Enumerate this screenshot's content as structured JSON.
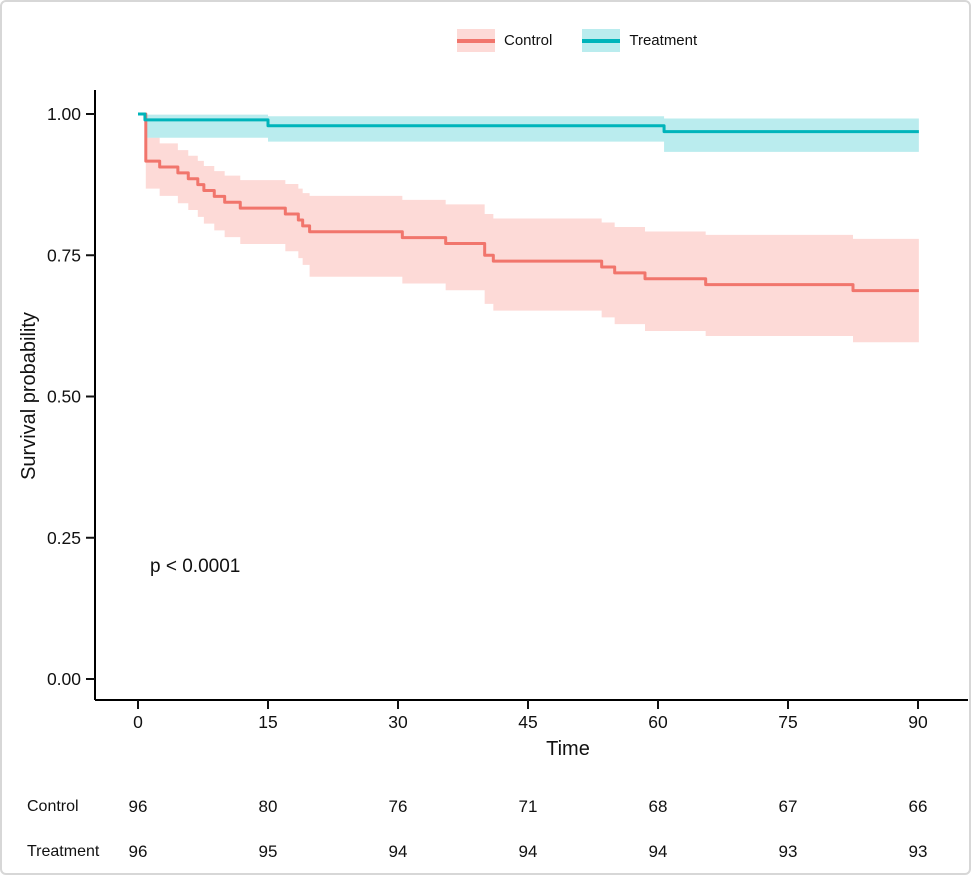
{
  "legend": {
    "items": [
      {
        "label": "Control",
        "line_color": "#F1756C",
        "fill_color": "rgba(247,118,109,0.27)"
      },
      {
        "label": "Treatment",
        "line_color": "#00B4BA",
        "fill_color": "rgba(0,186,192,0.27)"
      }
    ]
  },
  "chart_data": {
    "type": "line",
    "subtype": "kaplan-meier-step",
    "title": "",
    "xlabel": "Time",
    "ylabel": "Survival probability",
    "xlim": [
      0,
      90
    ],
    "ylim": [
      0,
      1
    ],
    "grid": false,
    "legend_position": "top",
    "annotation": {
      "text": "p < 0.0001"
    },
    "xticks": [
      {
        "v": 0,
        "label": "0"
      },
      {
        "v": 15,
        "label": "15"
      },
      {
        "v": 30,
        "label": "30"
      },
      {
        "v": 45,
        "label": "45"
      },
      {
        "v": 60,
        "label": "60"
      },
      {
        "v": 75,
        "label": "75"
      },
      {
        "v": 90,
        "label": "90"
      }
    ],
    "yticks": [
      {
        "v": 1.0,
        "label": "1.00"
      },
      {
        "v": 0.75,
        "label": "0.75"
      },
      {
        "v": 0.5,
        "label": "0.50"
      },
      {
        "v": 0.25,
        "label": "0.25"
      },
      {
        "v": 0.0,
        "label": "0.00"
      }
    ],
    "series": [
      {
        "name": "Control",
        "line_color": "#F1756C",
        "band_color": "rgba(247,118,109,0.27)",
        "end_t": 90.1,
        "steps": [
          {
            "t": 0,
            "s": 1.0
          },
          {
            "t": 0.9,
            "s": 0.9167
          },
          {
            "t": 2.5,
            "s": 0.9063
          },
          {
            "t": 4.6,
            "s": 0.8958
          },
          {
            "t": 5.8,
            "s": 0.8854
          },
          {
            "t": 6.9,
            "s": 0.875
          },
          {
            "t": 7.6,
            "s": 0.8646
          },
          {
            "t": 8.8,
            "s": 0.8542
          },
          {
            "t": 10,
            "s": 0.8438
          },
          {
            "t": 11.8,
            "s": 0.8333
          },
          {
            "t": 17,
            "s": 0.8229
          },
          {
            "t": 18.5,
            "s": 0.8125
          },
          {
            "t": 19,
            "s": 0.8021
          },
          {
            "t": 19.8,
            "s": 0.7917
          },
          {
            "t": 30.5,
            "s": 0.7813
          },
          {
            "t": 35.5,
            "s": 0.7708
          },
          {
            "t": 40,
            "s": 0.75
          },
          {
            "t": 41,
            "s": 0.7396
          },
          {
            "t": 53.5,
            "s": 0.7292
          },
          {
            "t": 55,
            "s": 0.7188
          },
          {
            "t": 58.5,
            "s": 0.7083
          },
          {
            "t": 65.5,
            "s": 0.6979
          },
          {
            "t": 82.5,
            "s": 0.6875
          }
        ],
        "band": [
          {
            "t": 0.9,
            "lo": 0.868,
            "hi": 0.958
          },
          {
            "t": 2.5,
            "lo": 0.855,
            "hi": 0.948
          },
          {
            "t": 4.6,
            "lo": 0.842,
            "hi": 0.936
          },
          {
            "t": 5.8,
            "lo": 0.83,
            "hi": 0.926
          },
          {
            "t": 6.9,
            "lo": 0.818,
            "hi": 0.917
          },
          {
            "t": 7.6,
            "lo": 0.806,
            "hi": 0.908
          },
          {
            "t": 8.8,
            "lo": 0.794,
            "hi": 0.899
          },
          {
            "t": 10,
            "lo": 0.782,
            "hi": 0.891
          },
          {
            "t": 11.8,
            "lo": 0.77,
            "hi": 0.883
          },
          {
            "t": 17,
            "lo": 0.757,
            "hi": 0.876
          },
          {
            "t": 18.5,
            "lo": 0.745,
            "hi": 0.868
          },
          {
            "t": 19,
            "lo": 0.733,
            "hi": 0.86
          },
          {
            "t": 19.8,
            "lo": 0.712,
            "hi": 0.855
          },
          {
            "t": 30.5,
            "lo": 0.7,
            "hi": 0.848
          },
          {
            "t": 35.5,
            "lo": 0.688,
            "hi": 0.84
          },
          {
            "t": 40,
            "lo": 0.664,
            "hi": 0.823
          },
          {
            "t": 41,
            "lo": 0.652,
            "hi": 0.815
          },
          {
            "t": 53.5,
            "lo": 0.64,
            "hi": 0.808
          },
          {
            "t": 55,
            "lo": 0.628,
            "hi": 0.8
          },
          {
            "t": 58.5,
            "lo": 0.616,
            "hi": 0.792
          },
          {
            "t": 65.5,
            "lo": 0.607,
            "hi": 0.786
          },
          {
            "t": 82.5,
            "lo": 0.596,
            "hi": 0.779
          }
        ]
      },
      {
        "name": "Treatment",
        "line_color": "#00B4BA",
        "band_color": "rgba(0,186,192,0.27)",
        "end_t": 90.1,
        "steps": [
          {
            "t": 0,
            "s": 1.0
          },
          {
            "t": 0.8,
            "s": 0.9896
          },
          {
            "t": 15,
            "s": 0.9792
          },
          {
            "t": 60.7,
            "s": 0.9688
          }
        ],
        "band": [
          {
            "t": 0.8,
            "lo": 0.958,
            "hi": 0.999
          },
          {
            "t": 15,
            "lo": 0.951,
            "hi": 0.996
          },
          {
            "t": 60.7,
            "lo": 0.933,
            "hi": 0.992
          }
        ]
      }
    ]
  },
  "risk_table": {
    "times": [
      0,
      15,
      30,
      45,
      60,
      75,
      90
    ],
    "rows": [
      {
        "label": "Control",
        "counts": [
          "96",
          "80",
          "76",
          "71",
          "68",
          "67",
          "66"
        ]
      },
      {
        "label": "Treatment",
        "counts": [
          "96",
          "95",
          "94",
          "94",
          "94",
          "93",
          "93"
        ]
      }
    ]
  }
}
